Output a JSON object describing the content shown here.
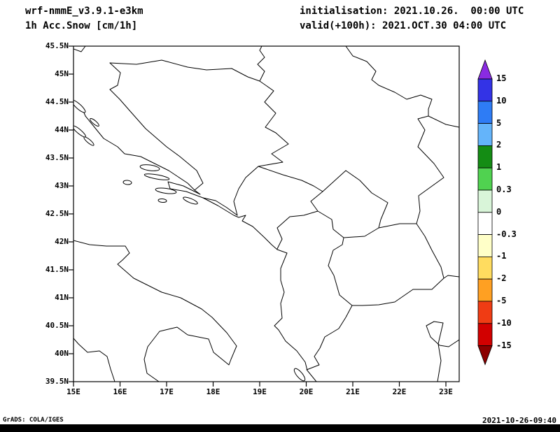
{
  "header": {
    "model_line": "wrf-nmmE_v3.9.1-e3km",
    "field_line": "1h Acc.Snow [cm/1h]",
    "init_line": "initialisation: 2021.10.26.  00:00 UTC",
    "valid_line": "valid(+100h): 2021.OCT.30 04:00 UTC"
  },
  "footer": {
    "left": "GrADS: COLA/IGES",
    "right": "2021-10-26-09:40"
  },
  "chart_data": {
    "type": "heatmap",
    "subtype": "filled-contour meteorological map (GrADS output)",
    "title": "1h Acc.Snow [cm/1h]",
    "model": "wrf-nmmE_v3.9.1-e3km",
    "initialisation": "2021.10.26. 00:00 UTC",
    "valid": "(+100h) 2021.OCT.30 04:00 UTC",
    "region": "Adriatic Sea / Balkans, approx 15E-23.3E, 39.5N-45.5N",
    "x_axis": {
      "unit": "degrees East longitude",
      "ticks": [
        "15E",
        "16E",
        "17E",
        "18E",
        "19E",
        "20E",
        "21E",
        "22E",
        "23E"
      ],
      "range": [
        15,
        23.3
      ],
      "grid": false
    },
    "y_axis": {
      "unit": "degrees North latitude",
      "ticks": [
        "45.5N",
        "45N",
        "44.5N",
        "44N",
        "43.5N",
        "43N",
        "42.5N",
        "42N",
        "41.5N",
        "41N",
        "40.5N",
        "40N",
        "39.5N"
      ],
      "range": [
        39.5,
        45.5
      ],
      "grid": false
    },
    "colorbar": {
      "unit": "cm/1h",
      "orientation": "vertical, right side, arrow ends top and bottom",
      "levels": [
        "15",
        "10",
        "5",
        "2",
        "1",
        "0.3",
        "0",
        "-0.3",
        "-1",
        "-2",
        "-5",
        "-10",
        "-15"
      ],
      "colors_order": "top (>15) to bottom (<-15)",
      "colors": [
        "#8a2be2",
        "#3333e6",
        "#2e7cf5",
        "#64b4fa",
        "#148c14",
        "#50d250",
        "#d9f5d9",
        "#ffffff",
        "#ffffc8",
        "#ffdc5f",
        "#ffa022",
        "#f03c14",
        "#d20000",
        "#8c0000"
      ]
    },
    "field": "No accumulated snow shaded anywhere in the domain: the entire map lies in the white 0 band (-0.3 to 0.3). Only black coastlines and country borders are drawn on white.",
    "map_features": [
      "east Adriatic coastline (Croatia-Montenegro-Albania-Greece)",
      "Croatian islands",
      "Italian Adriatic/Ionian coast with Gargano and Salento peninsulas",
      "Thermaic Gulf (Greece)",
      "country borders: Croatia, Bosnia, Serbia, Montenegro, Kosovo, Albania, Macedonia, Bulgaria, Romania, Greece"
    ]
  }
}
